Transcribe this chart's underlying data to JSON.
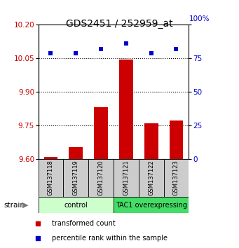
{
  "title": "GDS2451 / 252959_at",
  "samples": [
    "GSM137118",
    "GSM137119",
    "GSM137120",
    "GSM137121",
    "GSM137122",
    "GSM137123"
  ],
  "bar_values": [
    9.608,
    9.652,
    9.832,
    10.043,
    9.758,
    9.77
  ],
  "percentile_values": [
    79,
    79,
    82,
    86,
    79,
    82
  ],
  "bar_color": "#cc0000",
  "marker_color": "#0000cc",
  "ylim_left": [
    9.6,
    10.2
  ],
  "ylim_right": [
    0,
    100
  ],
  "yticks_left": [
    9.6,
    9.75,
    9.9,
    10.05,
    10.2
  ],
  "yticks_right": [
    0,
    25,
    50,
    75,
    100
  ],
  "hlines": [
    9.75,
    9.9,
    10.05
  ],
  "groups": [
    {
      "label": "control",
      "indices": [
        0,
        1,
        2
      ],
      "color": "#ccffcc"
    },
    {
      "label": "TAC1 overexpressing",
      "indices": [
        3,
        4,
        5
      ],
      "color": "#44dd66"
    }
  ],
  "strain_label": "strain",
  "legend_bar_label": "transformed count",
  "legend_marker_label": "percentile rank within the sample",
  "tick_label_color_left": "#cc0000",
  "tick_label_color_right": "#0000cc",
  "sample_box_color": "#cccccc",
  "right_top_label": "100%"
}
